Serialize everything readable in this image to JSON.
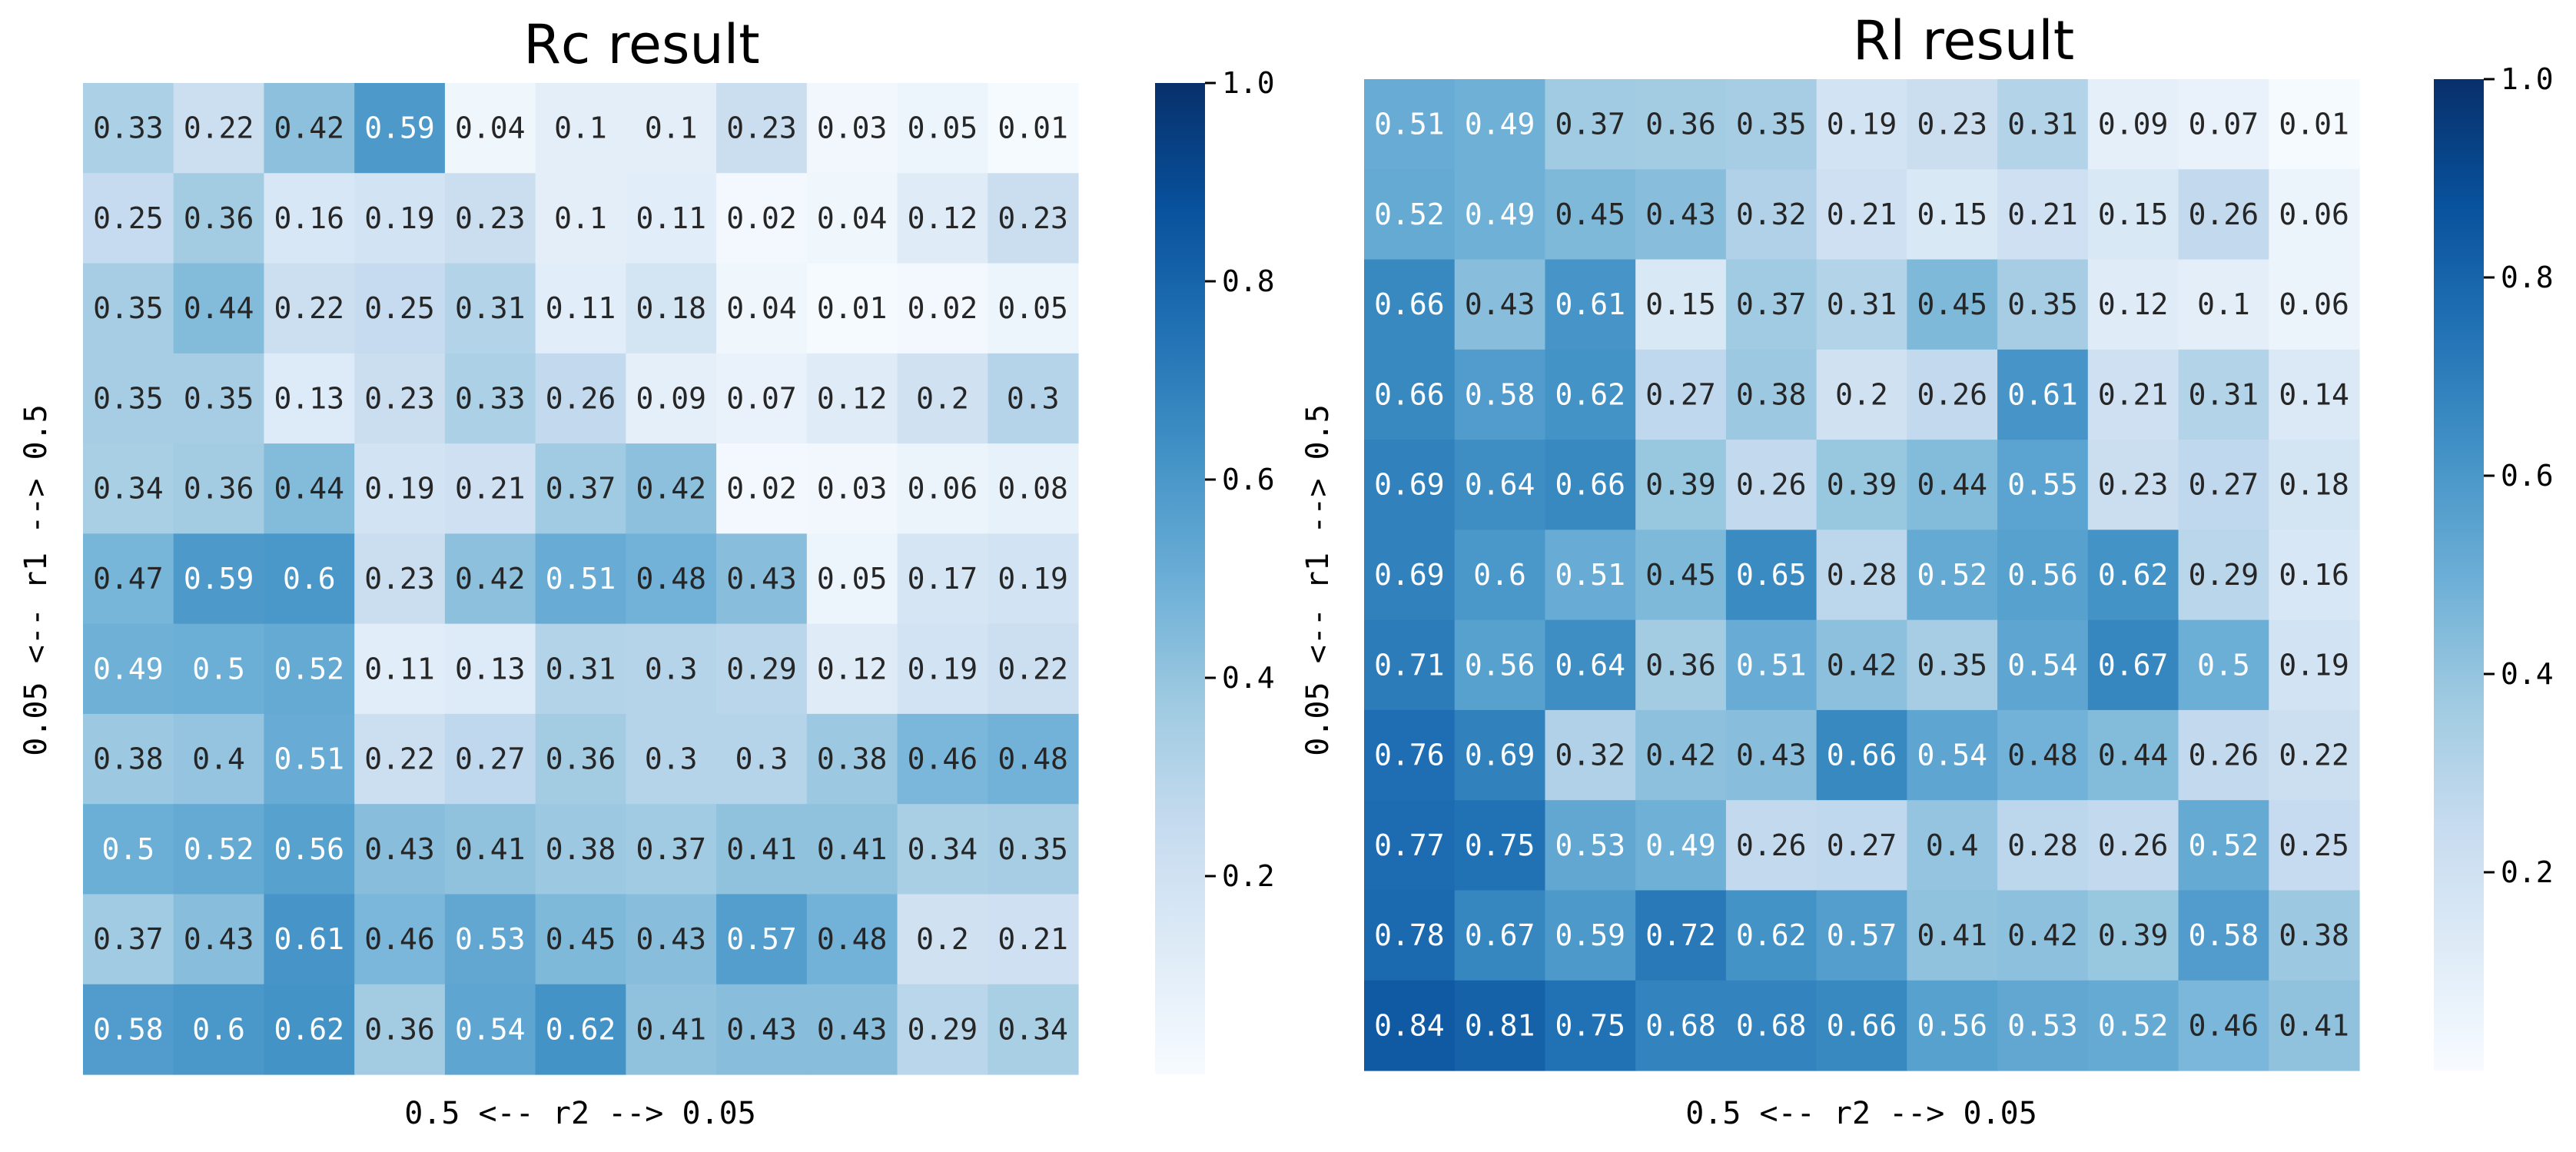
{
  "chart_data": [
    {
      "type": "heatmap",
      "title": "Rc result",
      "xlabel": "0.5 <-- r2 --> 0.05",
      "ylabel": "0.05 <-- r1 --> 0.5",
      "colormap": "Blues",
      "vmin": 0.0,
      "vmax": 1.0,
      "colorbar_ticks": [
        "0.2",
        "0.4",
        "0.6",
        "0.8",
        "1.0"
      ],
      "colorbar_tick_values": [
        0.2,
        0.4,
        0.6,
        0.8,
        1.0
      ],
      "values": [
        [
          0.33,
          0.22,
          0.42,
          0.59,
          0.04,
          0.1,
          0.1,
          0.23,
          0.03,
          0.05,
          0.01
        ],
        [
          0.25,
          0.36,
          0.16,
          0.19,
          0.23,
          0.1,
          0.11,
          0.02,
          0.04,
          0.12,
          0.23
        ],
        [
          0.35,
          0.44,
          0.22,
          0.25,
          0.31,
          0.11,
          0.18,
          0.04,
          0.01,
          0.02,
          0.05
        ],
        [
          0.35,
          0.35,
          0.13,
          0.23,
          0.33,
          0.26,
          0.09,
          0.07,
          0.12,
          0.2,
          0.3
        ],
        [
          0.34,
          0.36,
          0.44,
          0.19,
          0.21,
          0.37,
          0.42,
          0.02,
          0.03,
          0.06,
          0.08
        ],
        [
          0.47,
          0.59,
          0.6,
          0.23,
          0.42,
          0.51,
          0.48,
          0.43,
          0.05,
          0.17,
          0.19
        ],
        [
          0.49,
          0.5,
          0.52,
          0.11,
          0.13,
          0.31,
          0.3,
          0.29,
          0.12,
          0.19,
          0.22
        ],
        [
          0.38,
          0.4,
          0.51,
          0.22,
          0.27,
          0.36,
          0.3,
          0.3,
          0.38,
          0.46,
          0.48
        ],
        [
          0.5,
          0.52,
          0.56,
          0.43,
          0.41,
          0.38,
          0.37,
          0.41,
          0.41,
          0.34,
          0.35
        ],
        [
          0.37,
          0.43,
          0.61,
          0.46,
          0.53,
          0.45,
          0.43,
          0.57,
          0.48,
          0.2,
          0.21
        ],
        [
          0.58,
          0.6,
          0.62,
          0.36,
          0.54,
          0.62,
          0.41,
          0.43,
          0.43,
          0.29,
          0.34
        ]
      ]
    },
    {
      "type": "heatmap",
      "title": "Rl result",
      "xlabel": "0.5 <-- r2 --> 0.05",
      "ylabel": "0.05 <-- r1 --> 0.5",
      "colormap": "Blues",
      "vmin": 0.0,
      "vmax": 1.0,
      "colorbar_ticks": [
        "0.2",
        "0.4",
        "0.6",
        "0.8",
        "1.0"
      ],
      "colorbar_tick_values": [
        0.2,
        0.4,
        0.6,
        0.8,
        1.0
      ],
      "values": [
        [
          0.51,
          0.49,
          0.37,
          0.36,
          0.35,
          0.19,
          0.23,
          0.31,
          0.09,
          0.07,
          0.01
        ],
        [
          0.52,
          0.49,
          0.45,
          0.43,
          0.32,
          0.21,
          0.15,
          0.21,
          0.15,
          0.26,
          0.06
        ],
        [
          0.66,
          0.43,
          0.61,
          0.15,
          0.37,
          0.31,
          0.45,
          0.35,
          0.12,
          0.1,
          0.06
        ],
        [
          0.66,
          0.58,
          0.62,
          0.27,
          0.38,
          0.2,
          0.26,
          0.61,
          0.21,
          0.31,
          0.14
        ],
        [
          0.69,
          0.64,
          0.66,
          0.39,
          0.26,
          0.39,
          0.44,
          0.55,
          0.23,
          0.27,
          0.18
        ],
        [
          0.69,
          0.6,
          0.51,
          0.45,
          0.65,
          0.28,
          0.52,
          0.56,
          0.62,
          0.29,
          0.16
        ],
        [
          0.71,
          0.56,
          0.64,
          0.36,
          0.51,
          0.42,
          0.35,
          0.54,
          0.67,
          0.5,
          0.19
        ],
        [
          0.76,
          0.69,
          0.32,
          0.42,
          0.43,
          0.66,
          0.54,
          0.48,
          0.44,
          0.26,
          0.22
        ],
        [
          0.77,
          0.75,
          0.53,
          0.49,
          0.26,
          0.27,
          0.4,
          0.28,
          0.26,
          0.52,
          0.25
        ],
        [
          0.78,
          0.67,
          0.59,
          0.72,
          0.62,
          0.57,
          0.41,
          0.42,
          0.39,
          0.58,
          0.38
        ],
        [
          0.84,
          0.81,
          0.75,
          0.68,
          0.68,
          0.66,
          0.56,
          0.53,
          0.52,
          0.46,
          0.41
        ]
      ]
    }
  ]
}
